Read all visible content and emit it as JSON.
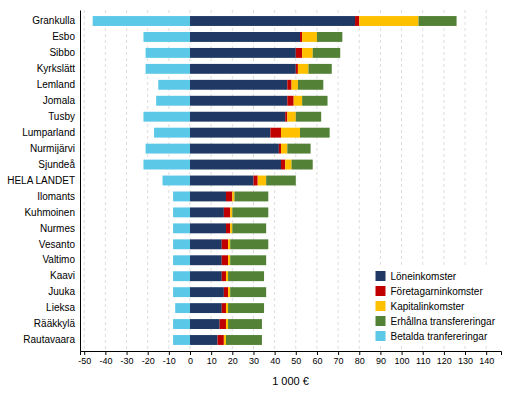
{
  "chart_data": {
    "type": "bar",
    "orientation": "horizontal",
    "stacked": true,
    "xlabel": "1 000 €",
    "categories": [
      "Grankulla",
      "Esbo",
      "Sibbo",
      "Kyrkslätt",
      "Lemland",
      "Jomala",
      "Tusby",
      "Lumparland",
      "Nurmijärvi",
      "Sjundeå",
      "HELA LANDET",
      "Ilomants",
      "Kuhmoinen",
      "Nurmes",
      "Vesanto",
      "Valtimo",
      "Kaavi",
      "Juuka",
      "Lieksa",
      "Rääkkylä",
      "Rautavaara"
    ],
    "series": [
      {
        "name": "Löneinkomster",
        "color": "#1F3864",
        "values": [
          78,
          52,
          50,
          50,
          46,
          46,
          45,
          38,
          42,
          43,
          30,
          17,
          16,
          17,
          15,
          15,
          15,
          16,
          15,
          14,
          13
        ]
      },
      {
        "name": "Företagarninkomster",
        "color": "#C00000",
        "values": [
          2,
          1,
          3,
          1,
          2,
          3,
          1,
          5,
          1,
          2,
          2,
          3,
          3,
          2,
          3,
          3,
          2,
          2,
          2,
          3,
          3
        ]
      },
      {
        "name": "Kapitalinkomster",
        "color": "#FFC000",
        "values": [
          28,
          7,
          5,
          5,
          3,
          4,
          4,
          9,
          3,
          3,
          4,
          1,
          1,
          1,
          1,
          1,
          1,
          1,
          1,
          1,
          1
        ]
      },
      {
        "name": "Erhållna transfereringar",
        "color": "#538135",
        "values": [
          18,
          12,
          13,
          11,
          12,
          12,
          12,
          14,
          11,
          10,
          14,
          16,
          17,
          16,
          18,
          17,
          17,
          17,
          17,
          16,
          17
        ]
      },
      {
        "name": "Betalda tranfereringar",
        "color": "#5BC8E8",
        "values": [
          -46,
          -22,
          -21,
          -21,
          -15,
          -16,
          -22,
          -17,
          -21,
          -22,
          -13,
          -8,
          -8,
          -8,
          -8,
          -8,
          -8,
          -8,
          -7,
          -8,
          -8
        ]
      }
    ],
    "xlim": [
      -52,
      147
    ],
    "xticks": [
      -50,
      -40,
      -30,
      -20,
      -10,
      0,
      10,
      20,
      30,
      40,
      50,
      60,
      70,
      80,
      90,
      100,
      110,
      120,
      130,
      140
    ],
    "grid": true,
    "legend": "lower right"
  }
}
